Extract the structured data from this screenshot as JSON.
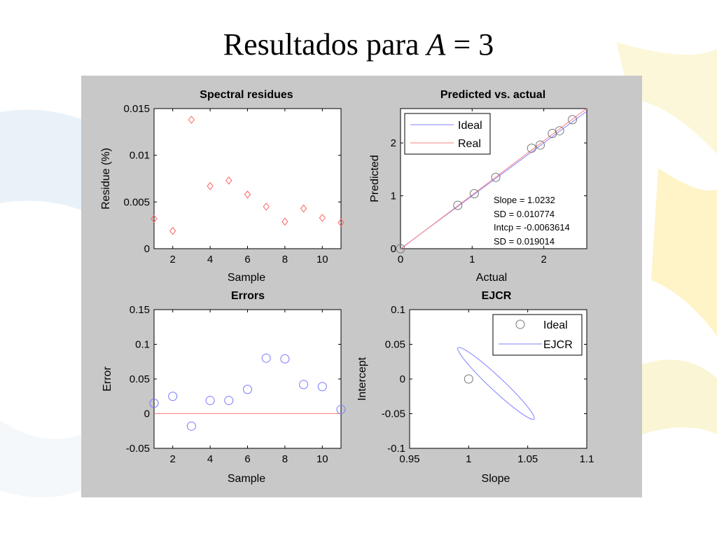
{
  "slide": {
    "title_prefix": "Resultados para",
    "title_var": "A",
    "title_suffix": "= 3"
  },
  "colors": {
    "figure_bg": "#c8c8c8",
    "axes_bg": "#ffffff",
    "residue_marker": "#ff6060",
    "error_marker": "#7777ff",
    "ideal": "#8080ff",
    "real": "#ff8080",
    "ejcr": "#8080ff",
    "ideal_point": "#777777"
  },
  "chart_data": [
    {
      "type": "scatter",
      "title": "Spectral residues",
      "xlabel": "Sample",
      "ylabel": "Residue (%)",
      "xlim": [
        1,
        11
      ],
      "ylim": [
        0,
        0.015
      ],
      "xticks": [
        2,
        4,
        6,
        8,
        10
      ],
      "xtick_labels": [
        "2",
        "4",
        "6",
        "8",
        "10"
      ],
      "yticks": [
        0,
        0.005,
        0.01,
        0.015
      ],
      "ytick_labels": [
        "0",
        "0.005",
        "0.01",
        "0.015"
      ],
      "marker": "diamond",
      "x": [
        1,
        2,
        3,
        4,
        5,
        6,
        7,
        8,
        9,
        10,
        11
      ],
      "y": [
        0.0032,
        0.0019,
        0.0138,
        0.0067,
        0.0073,
        0.0058,
        0.0045,
        0.0029,
        0.0043,
        0.0033,
        0.0028
      ]
    },
    {
      "type": "scatter",
      "title": "Predicted vs. actual",
      "xlabel": "Actual",
      "ylabel": "Predicted",
      "xlim": [
        0,
        2.6
      ],
      "ylim": [
        0,
        2.65
      ],
      "xticks": [
        0,
        1,
        2
      ],
      "xtick_labels": [
        "0",
        "1",
        "2"
      ],
      "yticks": [
        0,
        1,
        2
      ],
      "ytick_labels": [
        "0",
        "1",
        "2"
      ],
      "marker": "circle",
      "x": [
        0,
        0.8,
        1.03,
        1.33,
        1.83,
        1.95,
        2.12,
        2.22,
        2.4
      ],
      "y": [
        0,
        0.82,
        1.04,
        1.35,
        1.9,
        1.96,
        2.18,
        2.23,
        2.44
      ],
      "lines": [
        {
          "name": "Ideal",
          "slope": 1,
          "intercept": 0
        },
        {
          "name": "Real",
          "slope": 1.0232,
          "intercept": -0.0063614
        }
      ],
      "legend": [
        "Ideal",
        "Real"
      ],
      "legend_position": "top-left",
      "annotation": [
        "Slope = 1.0232",
        "SD = 0.010774",
        "Intcp = -0.0063614",
        "SD = 0.019014"
      ]
    },
    {
      "type": "scatter",
      "title": "Errors",
      "xlabel": "Sample",
      "ylabel": "Error",
      "xlim": [
        1,
        11
      ],
      "ylim": [
        -0.05,
        0.15
      ],
      "xticks": [
        2,
        4,
        6,
        8,
        10
      ],
      "xtick_labels": [
        "2",
        "4",
        "6",
        "8",
        "10"
      ],
      "yticks": [
        -0.05,
        0,
        0.05,
        0.1,
        0.15
      ],
      "ytick_labels": [
        "-0.05",
        "0",
        "0.05",
        "0.1",
        "0.15"
      ],
      "marker": "circle",
      "x": [
        1,
        2,
        3,
        4,
        5,
        6,
        7,
        8,
        9,
        10,
        11
      ],
      "y": [
        0.015,
        0.025,
        -0.018,
        0.019,
        0.019,
        0.035,
        0.08,
        0.079,
        0.042,
        0.039,
        0.006
      ],
      "zero_line": true
    },
    {
      "type": "line",
      "title": "EJCR",
      "xlabel": "Slope",
      "ylabel": "Intercept",
      "xlim": [
        0.95,
        1.1
      ],
      "ylim": [
        -0.1,
        0.1
      ],
      "xticks": [
        0.95,
        1,
        1.05,
        1.1
      ],
      "xtick_labels": [
        "0.95",
        "1",
        "1.05",
        "1.1"
      ],
      "yticks": [
        -0.1,
        -0.05,
        0,
        0.05,
        0.1
      ],
      "ytick_labels": [
        "-0.1",
        "-0.05",
        "0",
        "0.05",
        "0.1"
      ],
      "ideal_point": {
        "x": 1,
        "y": 0
      },
      "ellipse": {
        "center_slope": 1.0232,
        "center_intercept": -0.0064
      },
      "legend": [
        "Ideal",
        "EJCR"
      ],
      "legend_position": "top-right"
    }
  ]
}
